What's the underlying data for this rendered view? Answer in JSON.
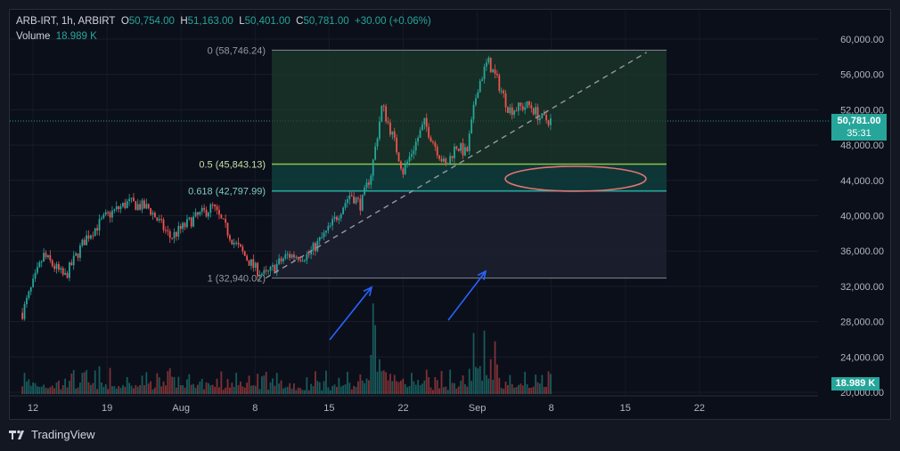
{
  "header": {
    "symbol": "ARB-IRT, 1h, ARBIRT",
    "open_label": "O",
    "open": "50,754.00",
    "high_label": "H",
    "high": "51,163.00",
    "low_label": "L",
    "low": "50,401.00",
    "close_label": "C",
    "close": "50,781.00",
    "change": "+30.00 (+0.06%)",
    "volume_label": "Volume",
    "volume": "18.989 K"
  },
  "price_tag": {
    "price": "50,781.00",
    "countdown": "35:31"
  },
  "volume_tag": "18.989 K",
  "footer": {
    "brand": "TradingView",
    "logo_icon": "tradingview-logo-icon"
  },
  "colors": {
    "up": "#26a69a",
    "down": "#ef5350",
    "background": "#0b0f1a",
    "fib_top_zone": "#1b3a2a",
    "fib_mid_zone": "#0e3b3b",
    "fib_low_zone": "#1c2030",
    "fib_line_05": "#8bc34a",
    "fib_line_0618": "#26a69a",
    "fib_line_edge": "#787b86",
    "arrow": "#2962ff",
    "ellipse": "#e57373"
  },
  "chart_data": {
    "type": "candlestick",
    "timeframe": "1h",
    "x_ticks": [
      "12",
      "19",
      "Aug",
      "8",
      "15",
      "22",
      "Sep",
      "8",
      "15",
      "22"
    ],
    "y_ticks": [
      "60,000.00",
      "56,000.00",
      "52,000.00",
      "48,000.00",
      "44,000.00",
      "40,000.00",
      "36,000.00",
      "32,000.00",
      "28,000.00",
      "24,000.00",
      "20,000.00"
    ],
    "ylim": [
      20000,
      61500
    ],
    "last_price": 50781,
    "fibonacci": {
      "levels": [
        {
          "ratio": "0",
          "price": "58,746.24"
        },
        {
          "ratio": "0.5",
          "price": "45,843.13"
        },
        {
          "ratio": "0.618",
          "price": "42,797.99"
        },
        {
          "ratio": "1",
          "price": "32,940.02"
        }
      ]
    },
    "trendline": {
      "from": {
        "x": "Aug 3",
        "y": 32940
      },
      "to": {
        "x": "Sep 8",
        "y": 58500
      },
      "style": "dashed"
    },
    "price_path": [
      {
        "x": "Jul 11",
        "y": 29000
      },
      {
        "x": "Jul 13",
        "y": 35500
      },
      {
        "x": "Jul 15",
        "y": 33000
      },
      {
        "x": "Jul 17",
        "y": 37500
      },
      {
        "x": "Jul 19",
        "y": 40000
      },
      {
        "x": "Jul 21",
        "y": 41500
      },
      {
        "x": "Jul 23",
        "y": 40800
      },
      {
        "x": "Jul 25",
        "y": 37500
      },
      {
        "x": "Jul 27",
        "y": 39500
      },
      {
        "x": "Jul 29",
        "y": 41000
      },
      {
        "x": "Jul 31",
        "y": 37000
      },
      {
        "x": "Aug 2",
        "y": 34000
      },
      {
        "x": "Aug 3",
        "y": 33200
      },
      {
        "x": "Aug 5",
        "y": 35500
      },
      {
        "x": "Aug 7",
        "y": 35500
      },
      {
        "x": "Aug 9",
        "y": 38500
      },
      {
        "x": "Aug 11",
        "y": 42500
      },
      {
        "x": "Aug 12",
        "y": 41200
      },
      {
        "x": "Aug 13",
        "y": 45000
      },
      {
        "x": "Aug 14",
        "y": 52500
      },
      {
        "x": "Aug 15",
        "y": 49000
      },
      {
        "x": "Aug 16",
        "y": 45000
      },
      {
        "x": "Aug 18",
        "y": 50500
      },
      {
        "x": "Aug 20",
        "y": 45500
      },
      {
        "x": "Aug 21",
        "y": 48000
      },
      {
        "x": "Aug 22",
        "y": 47000
      },
      {
        "x": "Aug 23",
        "y": 54500
      },
      {
        "x": "Aug 24",
        "y": 57500
      },
      {
        "x": "Aug 25",
        "y": 55000
      },
      {
        "x": "Aug 26",
        "y": 52000
      },
      {
        "x": "Aug 28",
        "y": 52500
      },
      {
        "x": "Aug 29",
        "y": 51000
      },
      {
        "x": "Aug 30",
        "y": 50781
      }
    ]
  }
}
